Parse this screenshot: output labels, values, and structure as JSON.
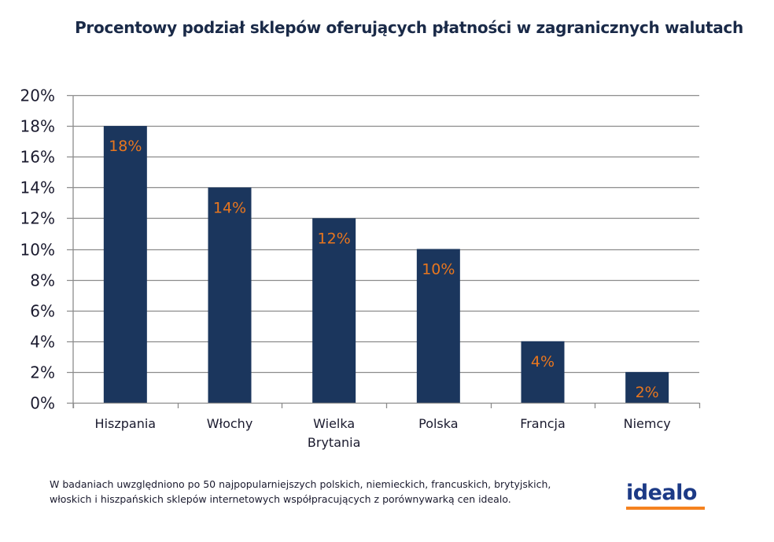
{
  "chart_data": {
    "type": "bar",
    "title": "Procentowy podział sklepów oferujących płatności w zagranicznych walutach",
    "xlabel": "",
    "ylabel": "",
    "categories": [
      "Hiszpania",
      "Włochy",
      "Wielka Brytania",
      "Polska",
      "Francja",
      "Niemcy"
    ],
    "category_lines": [
      [
        "Hiszpania"
      ],
      [
        "Włochy"
      ],
      [
        "Wielka",
        "Brytania"
      ],
      [
        "Polska"
      ],
      [
        "Francja"
      ],
      [
        "Niemcy"
      ]
    ],
    "values": [
      18,
      14,
      12,
      10,
      4,
      2
    ],
    "data_labels": [
      "18%",
      "14%",
      "12%",
      "10%",
      "4%",
      "2%"
    ],
    "value_unit": "%",
    "ylim": [
      0,
      20
    ],
    "yticks": [
      0,
      2,
      4,
      6,
      8,
      10,
      12,
      14,
      16,
      18,
      20
    ],
    "ytick_labels": [
      "0%",
      "2%",
      "4%",
      "6%",
      "8%",
      "10%",
      "12%",
      "14%",
      "16%",
      "18%",
      "20%"
    ],
    "grid": true,
    "legend": "none",
    "colors": {
      "bar": "#1b365d",
      "data_label": "#e8761e",
      "grid": "#8c8c8c"
    }
  },
  "footnote": {
    "line1": "W badaniach uwzględniono po 50 najpopularniejszych polskich, niemieckich, francuskich, brytyjskich,",
    "line2": "włoskich i hiszpańskich sklepów internetowych współpracujących z porównywarką cen idealo."
  },
  "logo": {
    "text": "idealo",
    "text_color": "#1c3a86",
    "underline_color": "#f5821f"
  }
}
